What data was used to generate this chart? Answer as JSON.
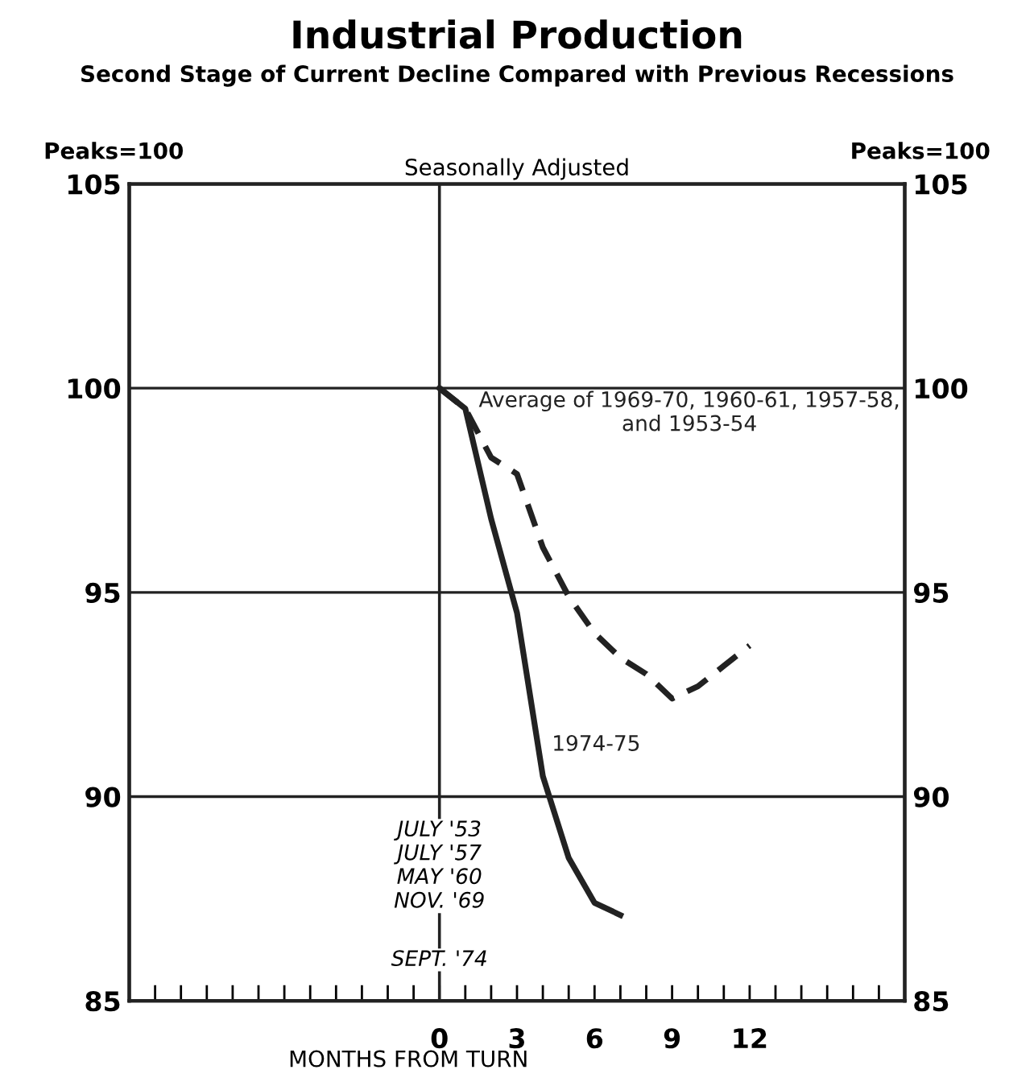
{
  "chart_data": {
    "type": "line",
    "title": "Industrial Production",
    "subtitle": "Second Stage of Current Decline Compared with Previous Recessions",
    "ylabel": "Peaks=100",
    "y2label": "Peaks=100",
    "xlabel": "MONTHS FROM TURN",
    "annotations": [
      "Seasonally Adjusted",
      {
        "text": "JULY '53\nJULY '57\nMAY '60\nNOV. '69",
        "x": 0,
        "y": 88.3
      },
      {
        "text": "SEPT. '74",
        "x": 0,
        "y": 86.0
      }
    ],
    "series": [
      {
        "name": "Average of 1969-70, 1960-61, 1957-58,\nand 1953-54",
        "color": "#222222",
        "line_style": "dashed",
        "x": [
          0,
          1,
          2,
          3,
          4,
          5,
          6,
          7,
          8,
          9,
          10,
          11,
          12
        ],
        "values": [
          100,
          99.5,
          98.3,
          97.9,
          96.1,
          94.9,
          94.0,
          93.4,
          93.0,
          92.4,
          92.7,
          93.2,
          93.7
        ]
      },
      {
        "name": "1974-75",
        "color": "#222222",
        "line_style": "solid",
        "x": [
          0,
          1,
          2,
          3,
          4,
          5,
          6,
          7
        ],
        "values": [
          100,
          99.5,
          96.8,
          94.5,
          90.5,
          88.5,
          87.4,
          87.1
        ]
      }
    ],
    "xlim": [
      -12,
      18
    ],
    "ylim": [
      85,
      105
    ],
    "y2lim": [
      85,
      105
    ],
    "xticks": [
      {
        "value": -11,
        "label": null
      },
      {
        "value": -10,
        "label": null
      },
      {
        "value": -9,
        "label": null
      },
      {
        "value": -8,
        "label": null
      },
      {
        "value": -7,
        "label": null
      },
      {
        "value": -6,
        "label": null
      },
      {
        "value": -5,
        "label": null
      },
      {
        "value": -4,
        "label": null
      },
      {
        "value": -3,
        "label": null
      },
      {
        "value": -2,
        "label": null
      },
      {
        "value": -1,
        "label": null
      },
      0,
      {
        "value": 1,
        "label": null
      },
      {
        "value": 2,
        "label": null
      },
      3,
      {
        "value": 4,
        "label": null
      },
      {
        "value": 5,
        "label": null
      },
      6,
      {
        "value": 7,
        "label": null
      },
      {
        "value": 8,
        "label": null
      },
      9,
      {
        "value": 10,
        "label": null
      },
      {
        "value": 11,
        "label": null
      },
      12,
      {
        "value": 13,
        "label": null
      },
      {
        "value": 14,
        "label": null
      },
      {
        "value": 15,
        "label": null
      },
      {
        "value": 16,
        "label": null
      },
      {
        "value": 17,
        "label": null
      }
    ],
    "yticks": [
      85,
      90,
      95,
      100,
      105
    ],
    "y2ticks": [
      85,
      90,
      95,
      100,
      105
    ],
    "grid": "y",
    "marker": "none",
    "ref_lines": [
      {
        "axis": "x",
        "value": 0,
        "label": null,
        "color": "#222222"
      }
    ]
  }
}
